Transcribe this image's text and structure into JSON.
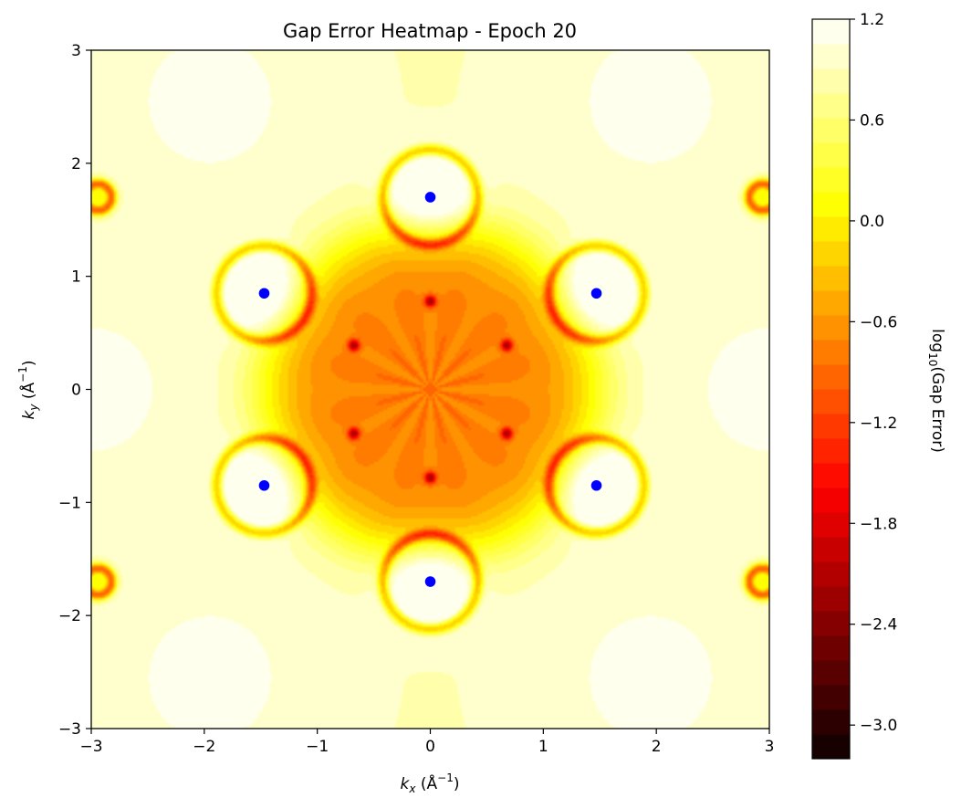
{
  "chart_data": {
    "type": "heatmap",
    "title": "Gap Error Heatmap - Epoch 20",
    "xlabel": {
      "var": "k",
      "sub": "x",
      "unit": "(Å",
      "exp": "−1",
      "close": ")"
    },
    "ylabel": {
      "var": "k",
      "sub": "y",
      "unit": "(Å",
      "exp": "−1",
      "close": ")"
    },
    "xlim": [
      -3,
      3
    ],
    "ylim": [
      -3,
      3
    ],
    "xticks": [
      -3,
      -2,
      -1,
      0,
      1,
      2,
      3
    ],
    "yticks": [
      -3,
      -2,
      -1,
      0,
      1,
      2,
      3
    ],
    "xtick_labels": [
      "−3",
      "−2",
      "−1",
      "0",
      "1",
      "2",
      "3"
    ],
    "ytick_labels": [
      "−3",
      "−2",
      "−1",
      "0",
      "1",
      "2",
      "3"
    ],
    "colorbar": {
      "label_prefix": "log",
      "label_sub": "10",
      "label_suffix": "(Gap Error)",
      "range": [
        -3.2,
        1.2
      ],
      "levels": 30,
      "ticks": [
        1.2,
        0.6,
        0.0,
        -0.6,
        -1.2,
        -1.8,
        -2.4,
        -3.0
      ],
      "tick_labels": [
        "1.2",
        "0.6",
        "0.0",
        "−0.6",
        "−1.2",
        "−1.8",
        "−2.4",
        "−3.0"
      ],
      "colormap": "hot"
    },
    "points": [
      {
        "x": 0.0,
        "y": 1.7
      },
      {
        "x": -1.47,
        "y": 0.85
      },
      {
        "x": 1.47,
        "y": 0.85
      },
      {
        "x": -1.47,
        "y": -0.85
      },
      {
        "x": 1.47,
        "y": -0.85
      },
      {
        "x": 0.0,
        "y": -1.7
      }
    ],
    "point_color": "#0000ff",
    "point_edge_color": "#ffffff"
  }
}
